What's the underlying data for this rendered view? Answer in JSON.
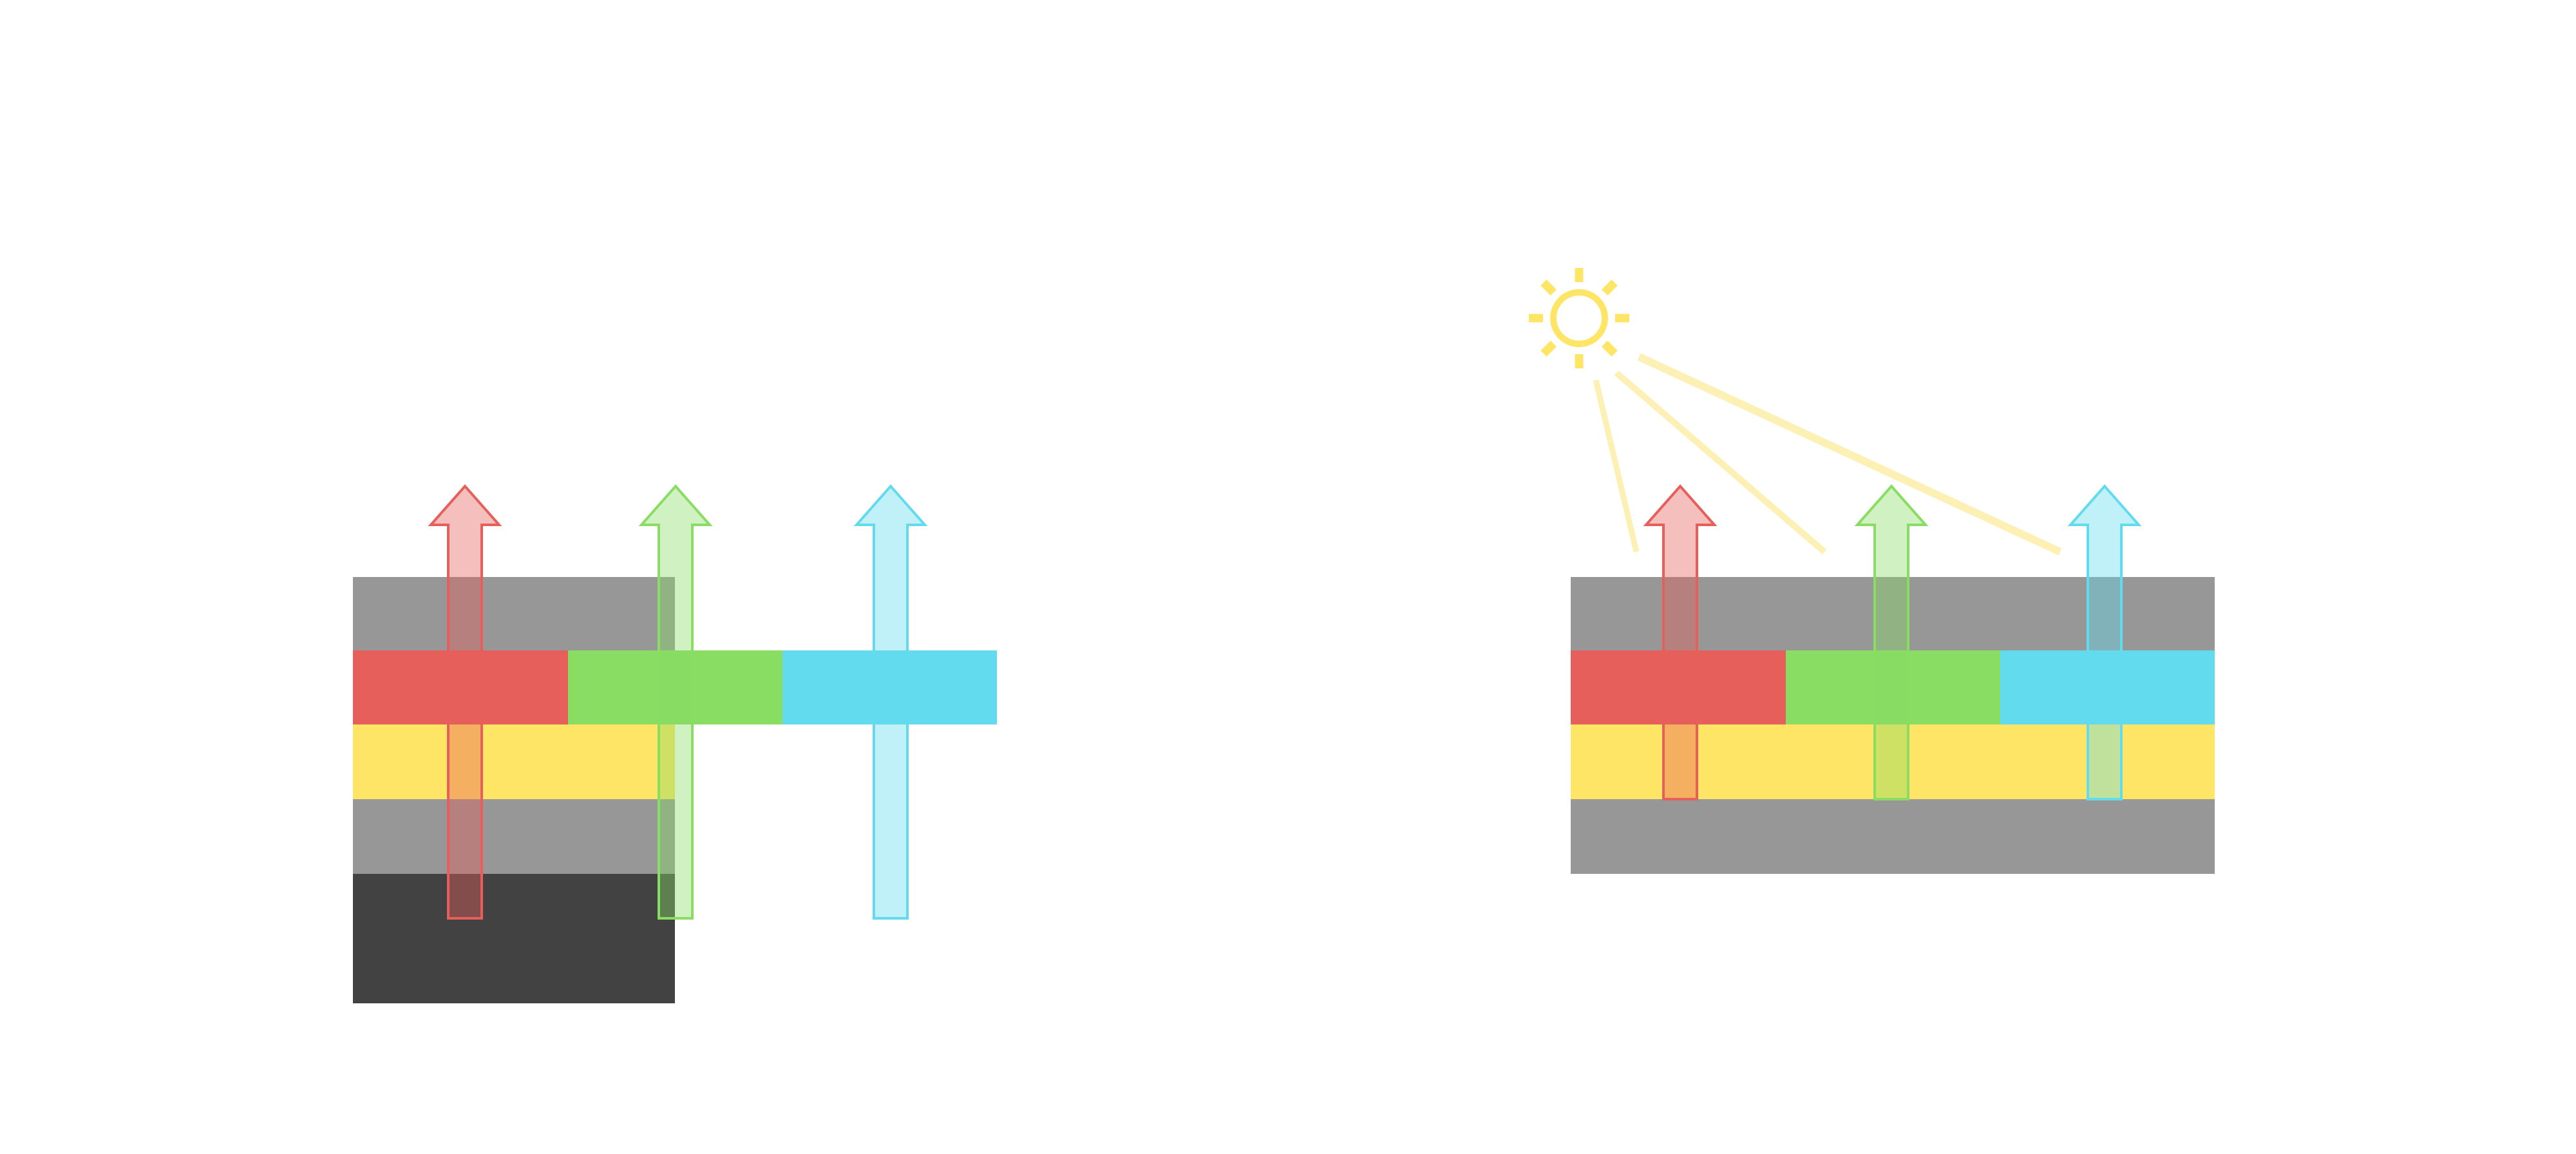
{
  "diagram": {
    "colors": {
      "gray_layer": "#979797",
      "dark_layer": "#424242",
      "red": "#e65f5a",
      "green": "#89dd63",
      "cyan": "#63dbee",
      "yellow": "#fee566",
      "light_ray": "#fcf0b4"
    },
    "left_stack": {
      "layers": [
        "gray",
        "red-green-cyan",
        "yellow",
        "gray",
        "dark"
      ],
      "arrows": [
        "red",
        "green",
        "cyan"
      ]
    },
    "right_stack": {
      "layers": [
        "gray",
        "red-green-cyan",
        "yellow",
        "gray"
      ],
      "arrows": [
        "red",
        "green",
        "cyan"
      ],
      "light_source": "sun-icon",
      "light_rays": 3
    }
  }
}
